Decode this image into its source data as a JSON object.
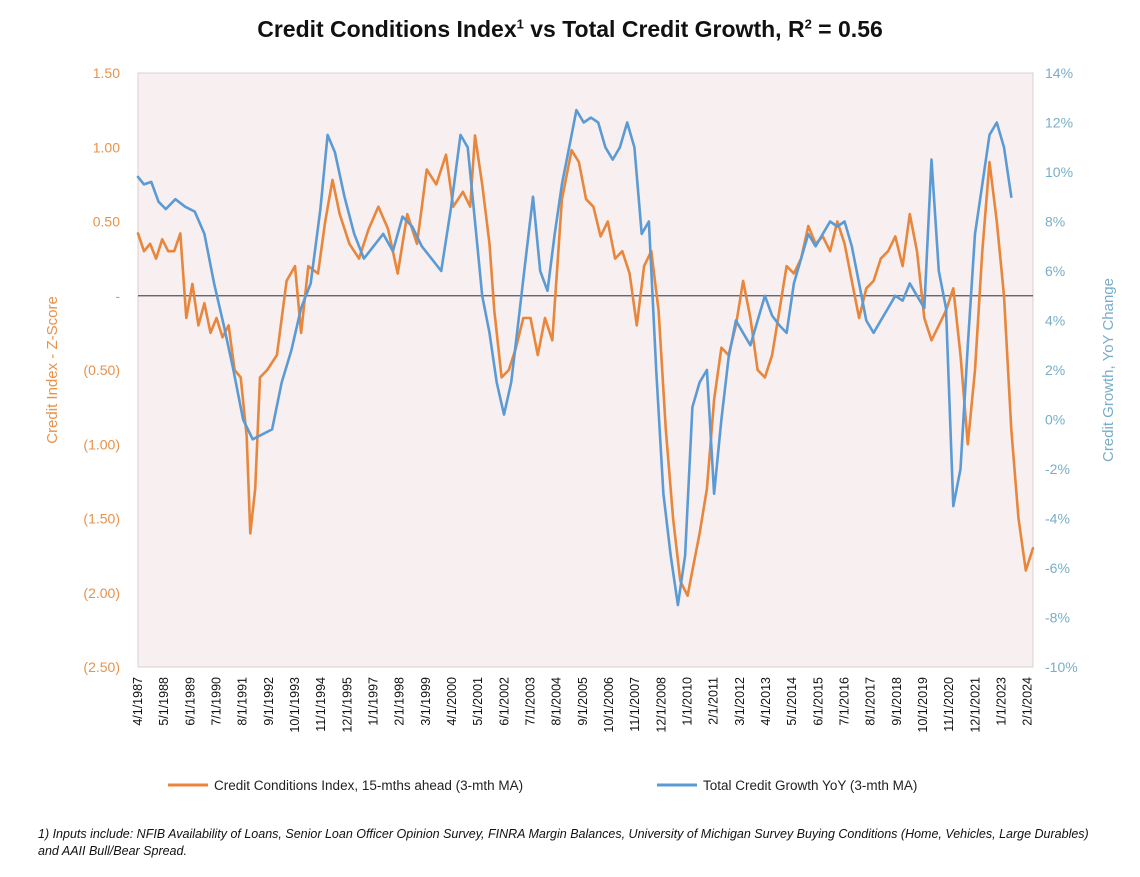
{
  "chart_data": {
    "type": "line",
    "title_main": "Credit Conditions Index",
    "title_sup1": "1",
    "title_mid": " vs Total Credit Growth, R",
    "title_sup2": "2",
    "title_end": " = 0.56",
    "y_left_label": "Credit Index - Z-Score",
    "y_right_label": "Credit Growth, YoY Change",
    "y_left_range": [
      -2.5,
      1.5
    ],
    "y_right_range": [
      -10,
      14
    ],
    "y_left_ticks": [
      "1.50",
      "1.00",
      "0.50",
      "-",
      "(0.50)",
      "(1.00)",
      "(1.50)",
      "(2.00)",
      "(2.50)"
    ],
    "y_right_ticks": [
      "14%",
      "12%",
      "10%",
      "8%",
      "6%",
      "4%",
      "2%",
      "0%",
      "-2%",
      "-4%",
      "-6%",
      "-8%",
      "-10%"
    ],
    "x_range": [
      1987.25,
      2024.3
    ],
    "x_ticks": [
      {
        "label": "4/1/1987",
        "x": 1987.25
      },
      {
        "label": "5/1/1988",
        "x": 1988.33
      },
      {
        "label": "6/1/1989",
        "x": 1989.42
      },
      {
        "label": "7/1/1990",
        "x": 1990.5
      },
      {
        "label": "8/1/1991",
        "x": 1991.58
      },
      {
        "label": "9/1/1992",
        "x": 1992.67
      },
      {
        "label": "10/1/1993",
        "x": 1993.75
      },
      {
        "label": "11/1/1994",
        "x": 1994.83
      },
      {
        "label": "12/1/1995",
        "x": 1995.92
      },
      {
        "label": "1/1/1997",
        "x": 1997.0
      },
      {
        "label": "2/1/1998",
        "x": 1998.08
      },
      {
        "label": "3/1/1999",
        "x": 1999.17
      },
      {
        "label": "4/1/2000",
        "x": 2000.25
      },
      {
        "label": "5/1/2001",
        "x": 2001.33
      },
      {
        "label": "6/1/2002",
        "x": 2002.42
      },
      {
        "label": "7/1/2003",
        "x": 2003.5
      },
      {
        "label": "8/1/2004",
        "x": 2004.58
      },
      {
        "label": "9/1/2005",
        "x": 2005.67
      },
      {
        "label": "10/1/2006",
        "x": 2006.75
      },
      {
        "label": "11/1/2007",
        "x": 2007.83
      },
      {
        "label": "12/1/2008",
        "x": 2008.92
      },
      {
        "label": "1/1/2010",
        "x": 2010.0
      },
      {
        "label": "2/1/2011",
        "x": 2011.08
      },
      {
        "label": "3/1/2012",
        "x": 2012.17
      },
      {
        "label": "4/1/2013",
        "x": 2013.25
      },
      {
        "label": "5/1/2014",
        "x": 2014.33
      },
      {
        "label": "6/1/2015",
        "x": 2015.42
      },
      {
        "label": "7/1/2016",
        "x": 2016.5
      },
      {
        "label": "8/1/2017",
        "x": 2017.58
      },
      {
        "label": "9/1/2018",
        "x": 2018.67
      },
      {
        "label": "10/1/2019",
        "x": 2019.75
      },
      {
        "label": "11/1/2020",
        "x": 2020.83
      },
      {
        "label": "12/1/2021",
        "x": 2021.92
      },
      {
        "label": "1/1/2023",
        "x": 2023.0
      },
      {
        "label": "2/1/2024",
        "x": 2024.08
      }
    ],
    "series": [
      {
        "name": "Credit Conditions Index, 15-mths ahead (3-mth MA)",
        "color": "#E8863C",
        "axis": "left",
        "x": [
          1987.25,
          1987.5,
          1987.75,
          1988.0,
          1988.25,
          1988.5,
          1988.75,
          1989.0,
          1989.25,
          1989.5,
          1989.75,
          1990.0,
          1990.25,
          1990.5,
          1990.75,
          1991.0,
          1991.25,
          1991.5,
          1991.75,
          1991.9,
          1992.1,
          1992.3,
          1992.6,
          1993.0,
          1993.4,
          1993.75,
          1994.0,
          1994.3,
          1994.7,
          1995.0,
          1995.3,
          1995.6,
          1996.0,
          1996.4,
          1996.8,
          1997.2,
          1997.6,
          1998.0,
          1998.4,
          1998.8,
          1999.2,
          1999.6,
          2000.0,
          2000.3,
          2000.7,
          2001.0,
          2001.2,
          2001.5,
          2001.8,
          2002.0,
          2002.3,
          2002.6,
          2002.9,
          2003.2,
          2003.5,
          2003.8,
          2004.1,
          2004.4,
          2004.8,
          2005.2,
          2005.5,
          2005.8,
          2006.1,
          2006.4,
          2006.7,
          2007.0,
          2007.3,
          2007.6,
          2007.9,
          2008.2,
          2008.5,
          2008.8,
          2009.1,
          2009.4,
          2009.7,
          2010.0,
          2010.2,
          2010.5,
          2010.8,
          2011.1,
          2011.4,
          2011.7,
          2012.0,
          2012.3,
          2012.6,
          2012.9,
          2013.2,
          2013.5,
          2013.8,
          2014.1,
          2014.4,
          2014.7,
          2015.0,
          2015.3,
          2015.6,
          2015.9,
          2016.2,
          2016.5,
          2016.8,
          2017.1,
          2017.4,
          2017.7,
          2018.0,
          2018.3,
          2018.6,
          2018.9,
          2019.2,
          2019.5,
          2019.8,
          2020.1,
          2020.4,
          2020.7,
          2021.0,
          2021.3,
          2021.6,
          2021.9,
          2022.2,
          2022.5,
          2022.8,
          2023.1,
          2023.4,
          2023.7,
          2024.0,
          2024.3
        ],
        "values": [
          0.42,
          0.3,
          0.35,
          0.25,
          0.38,
          0.3,
          0.3,
          0.42,
          -0.15,
          0.08,
          -0.2,
          -0.05,
          -0.25,
          -0.15,
          -0.28,
          -0.2,
          -0.5,
          -0.55,
          -0.95,
          -1.6,
          -1.3,
          -0.55,
          -0.5,
          -0.4,
          0.1,
          0.2,
          -0.25,
          0.2,
          0.15,
          0.5,
          0.78,
          0.55,
          0.35,
          0.25,
          0.45,
          0.6,
          0.45,
          0.15,
          0.55,
          0.35,
          0.85,
          0.75,
          0.95,
          0.6,
          0.7,
          0.6,
          1.08,
          0.75,
          0.35,
          -0.1,
          -0.55,
          -0.5,
          -0.35,
          -0.15,
          -0.15,
          -0.4,
          -0.15,
          -0.3,
          0.65,
          0.98,
          0.9,
          0.65,
          0.6,
          0.4,
          0.5,
          0.25,
          0.3,
          0.15,
          -0.2,
          0.2,
          0.3,
          -0.1,
          -0.9,
          -1.5,
          -1.92,
          -2.02,
          -1.85,
          -1.6,
          -1.3,
          -0.7,
          -0.35,
          -0.4,
          -0.2,
          0.1,
          -0.15,
          -0.5,
          -0.55,
          -0.4,
          -0.1,
          0.2,
          0.15,
          0.25,
          0.47,
          0.35,
          0.4,
          0.3,
          0.5,
          0.35,
          0.1,
          -0.15,
          0.05,
          0.1,
          0.25,
          0.3,
          0.4,
          0.2,
          0.55,
          0.3,
          -0.15,
          -0.3,
          -0.2,
          -0.1,
          0.05,
          -0.4,
          -1.0,
          -0.5,
          0.3,
          0.9,
          0.5,
          0.0,
          -0.9,
          -1.5,
          -1.85,
          -1.7
        ]
      },
      {
        "name": "Total Credit Growth YoY (3-mth MA)",
        "color": "#5B9BD5",
        "axis": "right",
        "x": [
          1987.25,
          1987.5,
          1987.8,
          1988.1,
          1988.4,
          1988.8,
          1989.2,
          1989.6,
          1990.0,
          1990.4,
          1990.8,
          1991.2,
          1991.6,
          1992.0,
          1992.4,
          1992.8,
          1993.2,
          1993.6,
          1994.0,
          1994.4,
          1994.8,
          1995.1,
          1995.4,
          1995.8,
          1996.2,
          1996.6,
          1997.0,
          1997.4,
          1997.8,
          1998.2,
          1998.6,
          1999.0,
          1999.4,
          1999.8,
          2000.2,
          2000.6,
          2000.9,
          2001.2,
          2001.5,
          2001.8,
          2002.1,
          2002.4,
          2002.7,
          2003.0,
          2003.3,
          2003.6,
          2003.9,
          2004.2,
          2004.5,
          2004.8,
          2005.1,
          2005.4,
          2005.7,
          2006.0,
          2006.3,
          2006.6,
          2006.9,
          2007.2,
          2007.5,
          2007.8,
          2008.1,
          2008.4,
          2008.7,
          2009.0,
          2009.3,
          2009.6,
          2009.9,
          2010.2,
          2010.5,
          2010.8,
          2011.1,
          2011.4,
          2011.7,
          2012.0,
          2012.3,
          2012.6,
          2012.9,
          2013.2,
          2013.5,
          2013.8,
          2014.1,
          2014.4,
          2014.7,
          2015.0,
          2015.3,
          2015.6,
          2015.9,
          2016.2,
          2016.5,
          2016.8,
          2017.1,
          2017.4,
          2017.7,
          2018.0,
          2018.3,
          2018.6,
          2018.9,
          2019.2,
          2019.5,
          2019.8,
          2020.1,
          2020.4,
          2020.7,
          2021.0,
          2021.3,
          2021.6,
          2021.9,
          2022.2,
          2022.5,
          2022.8,
          2023.1,
          2023.4
        ],
        "values": [
          9.8,
          9.5,
          9.6,
          8.8,
          8.5,
          8.9,
          8.6,
          8.4,
          7.5,
          5.5,
          3.8,
          2.0,
          0.0,
          -0.8,
          -0.6,
          -0.4,
          1.5,
          2.8,
          4.5,
          5.5,
          8.5,
          11.5,
          10.8,
          9.0,
          7.5,
          6.5,
          7.0,
          7.5,
          6.8,
          8.2,
          7.8,
          7.0,
          6.5,
          6.0,
          8.5,
          11.5,
          11.0,
          8.0,
          5.0,
          3.5,
          1.5,
          0.2,
          1.5,
          4.0,
          6.5,
          9.0,
          6.0,
          5.2,
          7.5,
          9.5,
          11.0,
          12.5,
          12.0,
          12.2,
          12.0,
          11.0,
          10.5,
          11.0,
          12.0,
          11.0,
          7.5,
          8.0,
          2.0,
          -3.0,
          -5.5,
          -7.5,
          -5.5,
          0.5,
          1.5,
          2.0,
          -3.0,
          0.0,
          2.5,
          4.0,
          3.5,
          3.0,
          4.0,
          5.0,
          4.2,
          3.8,
          3.5,
          5.5,
          6.5,
          7.5,
          7.0,
          7.5,
          8.0,
          7.8,
          8.0,
          7.0,
          5.5,
          4.0,
          3.5,
          4.0,
          4.5,
          5.0,
          4.8,
          5.5,
          5.0,
          4.5,
          10.5,
          6.0,
          4.5,
          -3.5,
          -2.0,
          3.0,
          7.5,
          9.5,
          11.5,
          12.0,
          11.0,
          9.0
        ]
      }
    ],
    "legend_position": "bottom",
    "grid": false,
    "footnote": "1) Inputs include: NFIB Availability of Loans, Senior Loan Officer Opinion Survey, FINRA Margin Balances, University of Michigan Survey Buying Conditions (Home, Vehicles, Large Durables) and AAII Bull/Bear Spread.",
    "colors": {
      "plot_bg": "#F8EFF0",
      "zero_line": "#555555",
      "left_axis": "#E8924A",
      "right_axis": "#78AEC9"
    }
  }
}
